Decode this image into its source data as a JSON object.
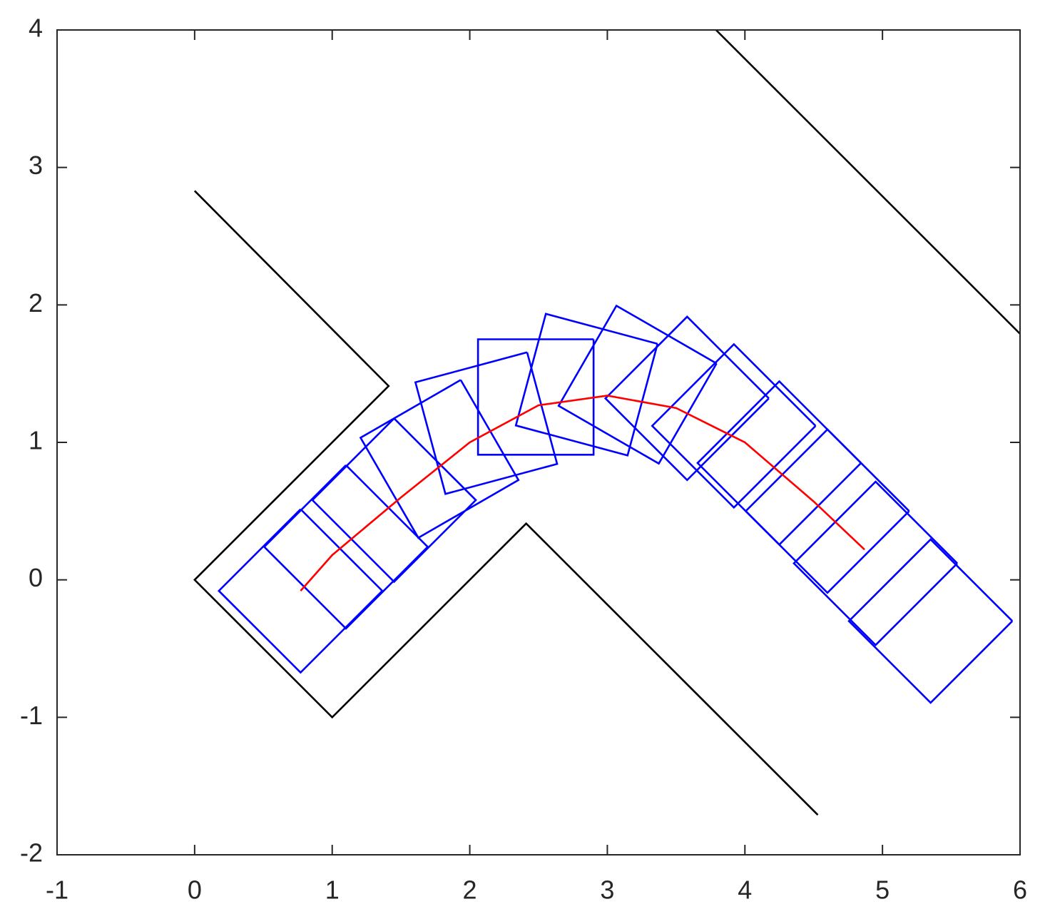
{
  "chart_data": {
    "type": "line",
    "xlim": [
      -1,
      6
    ],
    "ylim": [
      -2,
      4
    ],
    "xticks": [
      -1,
      0,
      1,
      2,
      3,
      4,
      5,
      6
    ],
    "yticks": [
      -2,
      -1,
      0,
      1,
      2,
      3,
      4
    ],
    "grid": false,
    "series": [
      {
        "color": "#000000",
        "x": [
          0,
          1.41,
          0,
          1,
          2.41,
          4.53
        ],
        "y": [
          2.83,
          1.41,
          0,
          -1,
          0.41,
          -1.71
        ]
      },
      {
        "color": "#000000",
        "x": [
          3.79,
          6
        ],
        "y": [
          4,
          1.79
        ]
      },
      {
        "color": "#0000ff",
        "x": [
          0.77,
          1.364,
          0.77,
          0.176,
          0.77
        ],
        "y": [
          0.514,
          -0.08,
          -0.674,
          -0.08,
          0.514
        ]
      },
      {
        "color": "#0000ff",
        "x": [
          1.1,
          1.694,
          1.1,
          0.506,
          1.1
        ],
        "y": [
          0.834,
          0.24,
          -0.354,
          0.24,
          0.834
        ]
      },
      {
        "color": "#0000ff",
        "x": [
          1.45,
          2.044,
          1.45,
          0.856,
          1.45
        ],
        "y": [
          1.174,
          0.58,
          -0.014,
          0.58,
          1.174
        ]
      },
      {
        "color": "#0000ff",
        "x": [
          1.934,
          2.354,
          1.626,
          1.206,
          1.934
        ],
        "y": [
          1.454,
          0.726,
          0.306,
          1.034,
          1.454
        ]
      },
      {
        "color": "#0000ff",
        "x": [
          2.417,
          2.635,
          1.823,
          1.605,
          2.417
        ],
        "y": [
          1.655,
          0.843,
          0.625,
          1.437,
          1.655
        ]
      },
      {
        "color": "#0000ff",
        "x": [
          2.9,
          2.9,
          2.06,
          2.06,
          2.9
        ],
        "y": [
          1.75,
          0.91,
          0.91,
          1.75,
          1.75
        ]
      },
      {
        "color": "#0000ff",
        "x": [
          3.365,
          3.147,
          2.335,
          2.553,
          3.365
        ],
        "y": [
          1.717,
          0.905,
          1.123,
          1.935,
          1.717
        ]
      },
      {
        "color": "#0000ff",
        "x": [
          3.794,
          3.374,
          2.646,
          3.066,
          3.794
        ],
        "y": [
          1.574,
          0.846,
          1.266,
          1.994,
          1.574
        ]
      },
      {
        "color": "#0000ff",
        "x": [
          4.174,
          3.58,
          2.986,
          3.58,
          4.174
        ],
        "y": [
          1.32,
          0.726,
          1.32,
          1.914,
          1.32
        ]
      },
      {
        "color": "#0000ff",
        "x": [
          4.514,
          3.92,
          3.326,
          3.92,
          4.514
        ],
        "y": [
          1.12,
          0.526,
          1.12,
          1.714,
          1.12
        ]
      },
      {
        "color": "#0000ff",
        "x": [
          4.844,
          4.25,
          3.656,
          4.25,
          4.844
        ],
        "y": [
          0.85,
          0.256,
          0.85,
          1.444,
          0.85
        ]
      },
      {
        "color": "#0000ff",
        "x": [
          5.194,
          4.6,
          4.006,
          4.6,
          5.194
        ],
        "y": [
          0.5,
          -0.094,
          0.5,
          1.094,
          0.5
        ]
      },
      {
        "color": "#0000ff",
        "x": [
          5.544,
          4.95,
          4.356,
          4.95,
          5.544
        ],
        "y": [
          0.12,
          -0.474,
          0.12,
          0.714,
          0.12
        ]
      },
      {
        "color": "#0000ff",
        "x": [
          5.944,
          5.35,
          4.756,
          5.35,
          5.944
        ],
        "y": [
          -0.3,
          -0.894,
          -0.3,
          0.294,
          -0.3
        ]
      },
      {
        "color": "#ff0000",
        "x": [
          0.77,
          1.0,
          1.5,
          2.0,
          2.5,
          3.0,
          3.5,
          4.0,
          4.5,
          4.87
        ],
        "y": [
          -0.08,
          0.18,
          0.6,
          1.0,
          1.27,
          1.34,
          1.25,
          1.0,
          0.57,
          0.22
        ]
      }
    ]
  }
}
